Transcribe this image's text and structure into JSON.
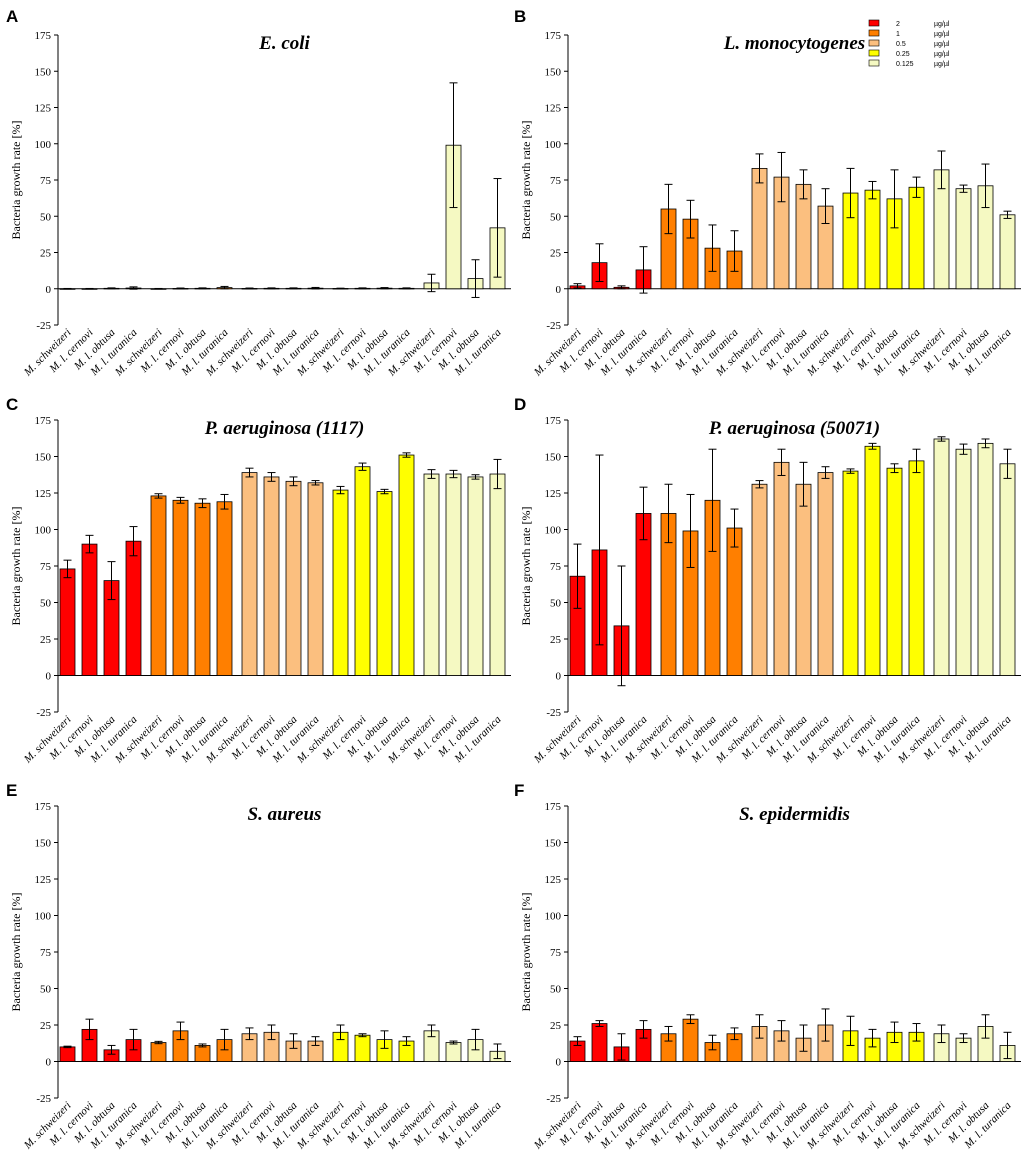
{
  "chart_data": [
    {
      "type": "bar",
      "panel": "A",
      "title": "E. coli",
      "ylabel": "Bacteria growth rate [%]",
      "ylim": [
        -25,
        175
      ],
      "yticks": [
        "-25",
        "0",
        "25",
        "50",
        "75",
        "100",
        "125",
        "150",
        "175"
      ],
      "categories": [
        "M. schweizeri",
        "M. l. cernovi",
        "M. l. obtusa",
        "M. l. turanica"
      ],
      "series": [
        {
          "name": "2",
          "values": [
            0,
            0,
            0.3,
            0.5
          ],
          "errors": [
            0.2,
            0.2,
            0.3,
            0.8
          ]
        },
        {
          "name": "1",
          "values": [
            0,
            0.2,
            0.3,
            0.8
          ],
          "errors": [
            0.2,
            0.3,
            0.3,
            0.8
          ]
        },
        {
          "name": "0.5",
          "values": [
            0.2,
            0.3,
            0.3,
            0.4
          ],
          "errors": [
            0.3,
            0.3,
            0.3,
            0.5
          ]
        },
        {
          "name": "0.25",
          "values": [
            0.2,
            0.3,
            0.4,
            0.3
          ],
          "errors": [
            0.2,
            0.3,
            0.4,
            0.3
          ]
        },
        {
          "name": "0.125",
          "values": [
            4,
            99,
            7,
            42
          ],
          "errors": [
            6,
            43,
            13,
            34
          ]
        }
      ]
    },
    {
      "type": "bar",
      "panel": "B",
      "title": "L. monocytogenes",
      "ylabel": "Bacteria growth rate [%]",
      "ylim": [
        -25,
        175
      ],
      "yticks": [
        "-25",
        "0",
        "25",
        "50",
        "75",
        "100",
        "125",
        "150",
        "175"
      ],
      "categories": [
        "M. schweizeri",
        "M. l. cernovi",
        "M. l. obtusa",
        "M. l. turanica"
      ],
      "series": [
        {
          "name": "2",
          "values": [
            2,
            18,
            1,
            13
          ],
          "errors": [
            1.5,
            13,
            1,
            16
          ]
        },
        {
          "name": "1",
          "values": [
            55,
            48,
            28,
            26
          ],
          "errors": [
            17,
            13,
            16,
            14
          ]
        },
        {
          "name": "0.5",
          "values": [
            83,
            77,
            72,
            57
          ],
          "errors": [
            10,
            17,
            10,
            12
          ]
        },
        {
          "name": "0.25",
          "values": [
            66,
            68,
            62,
            70
          ],
          "errors": [
            17,
            6,
            20,
            7
          ]
        },
        {
          "name": "0.125",
          "values": [
            82,
            69,
            71,
            51
          ],
          "errors": [
            13,
            2.5,
            15,
            2.5
          ]
        }
      ]
    },
    {
      "type": "bar",
      "panel": "C",
      "title": "P. aeruginosa (1117)",
      "ylabel": "Bacteria growth rate [%]",
      "ylim": [
        -25,
        175
      ],
      "yticks": [
        "-25",
        "0",
        "25",
        "50",
        "75",
        "100",
        "125",
        "150",
        "175"
      ],
      "categories": [
        "M. schweizeri",
        "M. l. cernovi",
        "M. l. obtusa",
        "M. l. turanica"
      ],
      "series": [
        {
          "name": "2",
          "values": [
            73,
            90,
            65,
            92
          ],
          "errors": [
            6,
            6,
            13,
            10
          ]
        },
        {
          "name": "1",
          "values": [
            123,
            120,
            118,
            119
          ],
          "errors": [
            1.5,
            2,
            3,
            5
          ]
        },
        {
          "name": "0.5",
          "values": [
            139,
            136,
            133,
            132
          ],
          "errors": [
            3,
            3,
            3,
            1.5
          ]
        },
        {
          "name": "0.25",
          "values": [
            127,
            143,
            126,
            151
          ],
          "errors": [
            2.5,
            2.5,
            1.5,
            1.5
          ]
        },
        {
          "name": "0.125",
          "values": [
            138,
            138,
            136,
            138
          ],
          "errors": [
            3,
            2.5,
            1.5,
            10
          ]
        }
      ]
    },
    {
      "type": "bar",
      "panel": "D",
      "title": "P. aeruginosa (50071)",
      "ylabel": "Bacteria growth rate [%]",
      "ylim": [
        -25,
        175
      ],
      "yticks": [
        "-25",
        "0",
        "25",
        "50",
        "75",
        "100",
        "125",
        "150",
        "175"
      ],
      "categories": [
        "M. schweizeri",
        "M. l. cernovi",
        "M. l. obtusa",
        "M. l. turanica"
      ],
      "series": [
        {
          "name": "2",
          "values": [
            68,
            86,
            34,
            111
          ],
          "errors": [
            22,
            65,
            41,
            18
          ]
        },
        {
          "name": "1",
          "values": [
            111,
            99,
            120,
            101
          ],
          "errors": [
            20,
            25,
            35,
            13
          ]
        },
        {
          "name": "0.5",
          "values": [
            131,
            146,
            131,
            139
          ],
          "errors": [
            2.5,
            9,
            15,
            4
          ]
        },
        {
          "name": "0.25",
          "values": [
            140,
            157,
            142,
            147
          ],
          "errors": [
            1.5,
            2,
            3,
            8
          ]
        },
        {
          "name": "0.125",
          "values": [
            162,
            155,
            159,
            145
          ],
          "errors": [
            1.5,
            3.5,
            3,
            10
          ]
        }
      ]
    },
    {
      "type": "bar",
      "panel": "E",
      "title": "S. aureus",
      "ylabel": "Bacteria growth rate [%]",
      "ylim": [
        -25,
        175
      ],
      "yticks": [
        "-25",
        "0",
        "25",
        "50",
        "75",
        "100",
        "125",
        "150",
        "175"
      ],
      "categories": [
        "M. schweizeri",
        "M. l. cernovi",
        "M. l. obtusa",
        "M. l. turanica"
      ],
      "series": [
        {
          "name": "2",
          "values": [
            10,
            22,
            8,
            15
          ],
          "errors": [
            0.5,
            7,
            3,
            7
          ]
        },
        {
          "name": "1",
          "values": [
            13,
            21,
            11,
            15
          ],
          "errors": [
            0.8,
            6,
            1,
            7
          ]
        },
        {
          "name": "0.5",
          "values": [
            19,
            20,
            14,
            14
          ],
          "errors": [
            4,
            5,
            5,
            3
          ]
        },
        {
          "name": "0.25",
          "values": [
            20,
            18,
            15,
            14
          ],
          "errors": [
            5,
            1,
            6,
            3
          ]
        },
        {
          "name": "0.125",
          "values": [
            21,
            13,
            15,
            7
          ],
          "errors": [
            4,
            1,
            7,
            5
          ]
        }
      ]
    },
    {
      "type": "bar",
      "panel": "F",
      "title": "S. epidermidis",
      "ylabel": "Bacteria growth rate [%]",
      "ylim": [
        -25,
        175
      ],
      "yticks": [
        "-25",
        "0",
        "25",
        "50",
        "75",
        "100",
        "125",
        "150",
        "175"
      ],
      "categories": [
        "M. schweizeri",
        "M. l. cernovi",
        "M. l. obtusa",
        "M. l. turanica"
      ],
      "series": [
        {
          "name": "2",
          "values": [
            14,
            26,
            10,
            22
          ],
          "errors": [
            3,
            2,
            9,
            6
          ]
        },
        {
          "name": "1",
          "values": [
            19,
            29,
            13,
            19
          ],
          "errors": [
            5,
            3,
            5,
            4
          ]
        },
        {
          "name": "0.5",
          "values": [
            24,
            21,
            16,
            25
          ],
          "errors": [
            8,
            7,
            9,
            11
          ]
        },
        {
          "name": "0.25",
          "values": [
            21,
            16,
            20,
            20
          ],
          "errors": [
            10,
            6,
            7,
            6
          ]
        },
        {
          "name": "0.125",
          "values": [
            19,
            16,
            24,
            11
          ],
          "errors": [
            6,
            3,
            8,
            9
          ]
        }
      ]
    }
  ],
  "legend": {
    "position": "top-right",
    "unit": "µg/µl",
    "entries": [
      "2",
      "1",
      "0.5",
      "0.25",
      "0.125"
    ]
  },
  "colors": {
    "series": [
      "#ff0000",
      "#ff7f00",
      "#fbbf7f",
      "#ffff00",
      "#f5f9c2"
    ]
  }
}
